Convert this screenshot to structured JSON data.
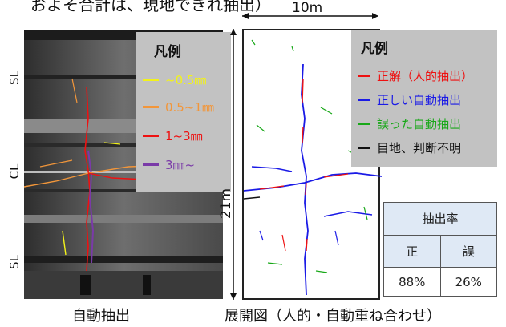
{
  "top_text": "およそ合計は、現地できれ抽出）",
  "left": {
    "side_labels": [
      "SL",
      "CL",
      "SL"
    ],
    "legend": {
      "title": "凡例",
      "items": [
        {
          "label": "~0.5㎜",
          "color": "#f2f21a"
        },
        {
          "label": "0.5~1㎜",
          "color": "#f2963a"
        },
        {
          "label": "1~3㎜",
          "color": "#ee1111"
        },
        {
          "label": "3㎜~",
          "color": "#7a3aa8"
        }
      ]
    },
    "caption": "自動抽出"
  },
  "right": {
    "width_label": "10m",
    "height_label": "21m",
    "legend": {
      "title": "凡例",
      "items": [
        {
          "label": "正解（人的抽出）",
          "color": "#ee1111"
        },
        {
          "label": "正しい自動抽出",
          "color": "#1a1ae6"
        },
        {
          "label": "誤った自動抽出",
          "color": "#18a818"
        },
        {
          "label": "目地、判断不明",
          "color": "#111111"
        }
      ]
    },
    "caption": "展開図（人的・自動重ね合わせ）"
  },
  "rate_table": {
    "title": "抽出率",
    "headers": [
      "正",
      "誤"
    ],
    "values": [
      "88%",
      "26%"
    ]
  }
}
